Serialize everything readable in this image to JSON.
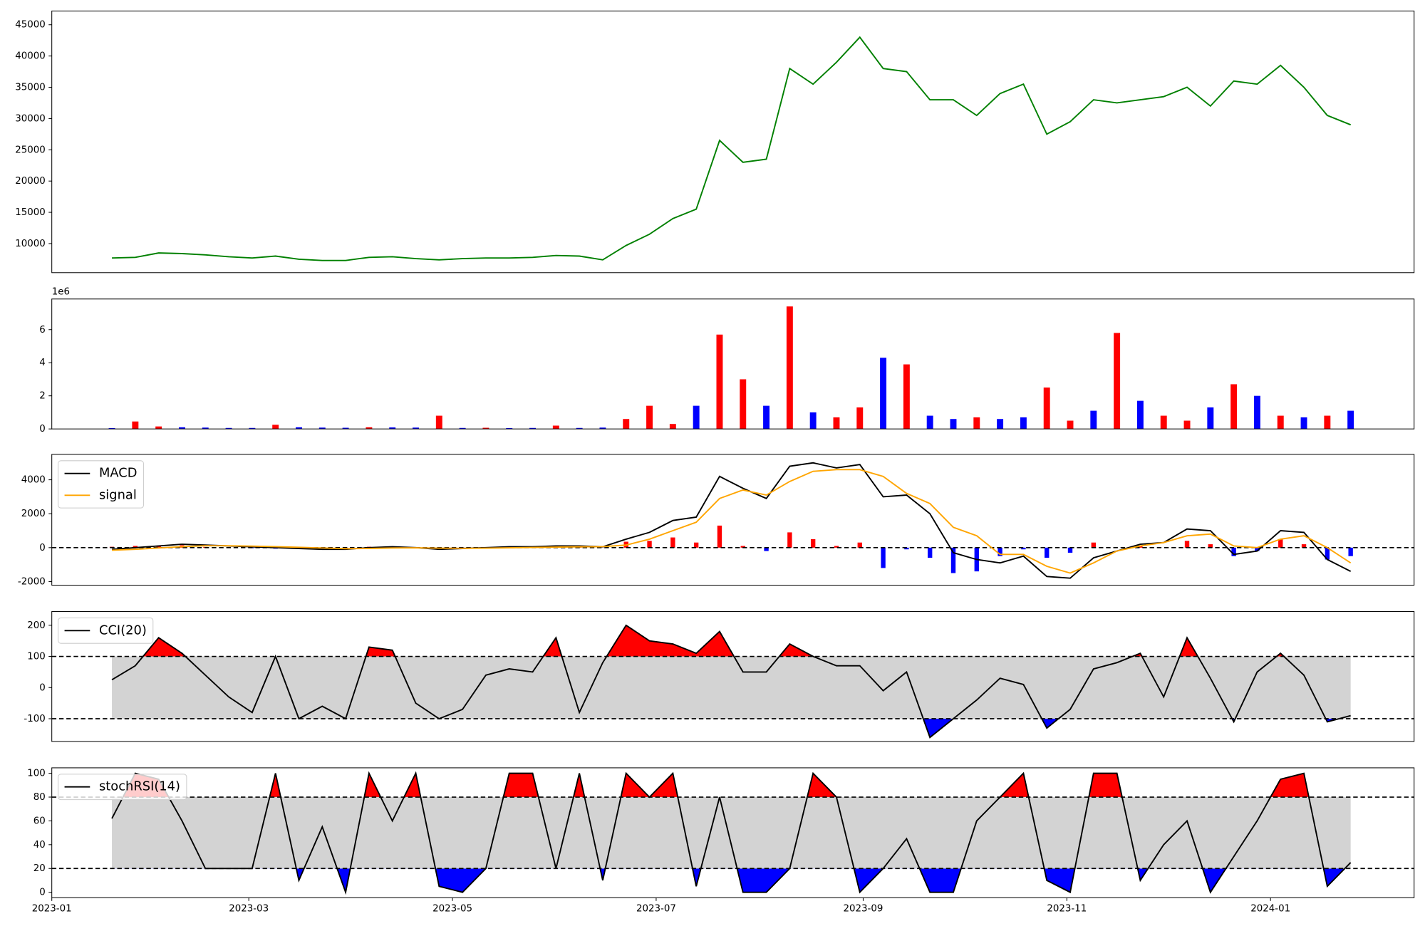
{
  "chart_data": [
    {
      "type": "line",
      "x": [
        19376,
        19383,
        19390,
        19397,
        19404,
        19411,
        19418,
        19425,
        19432,
        19439,
        19446,
        19453,
        19460,
        19467,
        19474,
        19481,
        19488,
        19495,
        19502,
        19509,
        19516,
        19523,
        19530,
        19537,
        19544,
        19551,
        19558,
        19565,
        19572,
        19579,
        19586,
        19593,
        19600,
        19607,
        19614,
        19621,
        19628,
        19635,
        19642,
        19649,
        19656,
        19663,
        19670,
        19677,
        19684,
        19691,
        19698,
        19705,
        19712,
        19719,
        19726,
        19733,
        19740,
        19747
      ],
      "series": [
        {
          "color": "#008000",
          "values": [
            7700,
            7800,
            8500,
            8400,
            8200,
            7900,
            7700,
            8000,
            7500,
            7300,
            7300,
            7800,
            7900,
            7600,
            7400,
            7600,
            7700,
            7700,
            7800,
            8100,
            8000,
            7400,
            9700,
            11500,
            14000,
            15500,
            26500,
            23000,
            23500,
            38000,
            35500,
            39000,
            43000,
            38000,
            37500,
            33000,
            33000,
            30500,
            34000,
            35500,
            27500,
            29500,
            33000,
            32500,
            33000,
            33500,
            35000,
            32000,
            36000,
            35500,
            38500,
            35000,
            30500,
            29000
          ]
        }
      ],
      "xlim": [
        19358,
        19766
      ],
      "ylim": [
        5350,
        47200
      ],
      "yticks": [
        10000,
        15000,
        20000,
        25000,
        30000,
        35000,
        40000,
        45000
      ]
    },
    {
      "type": "bar",
      "x": [
        19376,
        19383,
        19390,
        19397,
        19404,
        19411,
        19418,
        19425,
        19432,
        19439,
        19446,
        19453,
        19460,
        19467,
        19474,
        19481,
        19488,
        19495,
        19502,
        19509,
        19516,
        19523,
        19530,
        19537,
        19544,
        19551,
        19558,
        19565,
        19572,
        19579,
        19586,
        19593,
        19600,
        19607,
        19614,
        19621,
        19628,
        19635,
        19642,
        19649,
        19656,
        19663,
        19670,
        19677,
        19684,
        19691,
        19698,
        19705,
        19712,
        19719,
        19726,
        19733,
        19740,
        19747
      ],
      "values": [
        50000,
        450000,
        150000,
        100000,
        80000,
        60000,
        60000,
        250000,
        100000,
        80000,
        70000,
        100000,
        90000,
        80000,
        800000,
        60000,
        70000,
        50000,
        60000,
        200000,
        60000,
        80000,
        600000,
        1400000,
        300000,
        1400000,
        5700000,
        3000000,
        1400000,
        7400000,
        1000000,
        700000,
        1300000,
        4300000,
        3900000,
        800000,
        600000,
        700000,
        600000,
        700000,
        2500000,
        500000,
        1100000,
        5800000,
        1700000,
        800000,
        500000,
        1300000,
        2700000,
        2000000,
        800000,
        700000,
        800000,
        1100000
      ],
      "colors": [
        "blue",
        "red",
        "red",
        "blue",
        "blue",
        "blue",
        "blue",
        "red",
        "blue",
        "blue",
        "blue",
        "red",
        "blue",
        "blue",
        "red",
        "blue",
        "red",
        "blue",
        "blue",
        "red",
        "blue",
        "blue",
        "red",
        "red",
        "red",
        "blue",
        "red",
        "red",
        "blue",
        "red",
        "blue",
        "red",
        "red",
        "blue",
        "red",
        "blue",
        "blue",
        "red",
        "blue",
        "blue",
        "red",
        "red",
        "blue",
        "red",
        "blue",
        "red",
        "red",
        "blue",
        "red",
        "blue",
        "red",
        "blue",
        "red",
        "blue"
      ],
      "xlim": [
        19358,
        19766
      ],
      "ylim": [
        0,
        7850000
      ],
      "yticks": [
        {
          "value": 0,
          "label": "0"
        },
        {
          "value": 2000000,
          "label": "2"
        },
        {
          "value": 4000000,
          "label": "4"
        },
        {
          "value": 6000000,
          "label": "6"
        }
      ],
      "y_offset_label": "1e6"
    },
    {
      "type": "combo",
      "x": [
        19376,
        19383,
        19390,
        19397,
        19404,
        19411,
        19418,
        19425,
        19432,
        19439,
        19446,
        19453,
        19460,
        19467,
        19474,
        19481,
        19488,
        19495,
        19502,
        19509,
        19516,
        19523,
        19530,
        19537,
        19544,
        19551,
        19558,
        19565,
        19572,
        19579,
        19586,
        19593,
        19600,
        19607,
        19614,
        19621,
        19628,
        19635,
        19642,
        19649,
        19656,
        19663,
        19670,
        19677,
        19684,
        19691,
        19698,
        19705,
        19712,
        19719,
        19726,
        19733,
        19740,
        19747
      ],
      "series": [
        {
          "name": "MACD",
          "color": "black",
          "values": [
            -100,
            0,
            100,
            200,
            150,
            100,
            50,
            0,
            -50,
            -100,
            -100,
            0,
            50,
            0,
            -100,
            -50,
            0,
            50,
            50,
            100,
            100,
            50,
            500,
            900,
            1600,
            1800,
            4200,
            3500,
            2900,
            4800,
            5000,
            4700,
            4900,
            3000,
            3100,
            2000,
            -300,
            -700,
            -900,
            -500,
            -1700,
            -1800,
            -600,
            -200,
            200,
            300,
            1100,
            1000,
            -400,
            -200,
            1000,
            900,
            -700,
            -1400
          ]
        },
        {
          "name": "signal",
          "color": "orange",
          "values": [
            -150,
            -100,
            -20,
            60,
            110,
            110,
            90,
            60,
            20,
            -20,
            -60,
            -50,
            -20,
            -10,
            -30,
            -40,
            -30,
            -10,
            10,
            30,
            50,
            60,
            150,
            500,
            1000,
            1500,
            2900,
            3400,
            3100,
            3900,
            4500,
            4600,
            4600,
            4200,
            3200,
            2600,
            1200,
            700,
            -400,
            -400,
            -1100,
            -1500,
            -900,
            -200,
            100,
            300,
            700,
            800,
            100,
            0,
            500,
            700,
            0,
            -900
          ]
        }
      ],
      "histogram": {
        "values": [
          50,
          100,
          120,
          140,
          40,
          -10,
          -30,
          -60,
          -70,
          -80,
          -40,
          50,
          70,
          10,
          -70,
          -10,
          30,
          60,
          40,
          70,
          50,
          -10,
          350,
          400,
          600,
          300,
          1300,
          100,
          -200,
          900,
          500,
          100,
          300,
          -1200,
          -100,
          -600,
          -1500,
          -1400,
          -500,
          -100,
          -600,
          -300,
          300,
          0,
          100,
          0,
          400,
          200,
          -500,
          -200,
          500,
          200,
          -700,
          -500
        ],
        "pos_color": "red",
        "neg_color": "blue"
      },
      "hline": 0,
      "xlim": [
        19358,
        19766
      ],
      "ylim": [
        -2215,
        5500
      ],
      "yticks": [
        -2000,
        0,
        2000,
        4000
      ],
      "legend": "upper left"
    },
    {
      "type": "oscillator",
      "x": [
        19376,
        19383,
        19390,
        19397,
        19404,
        19411,
        19418,
        19425,
        19432,
        19439,
        19446,
        19453,
        19460,
        19467,
        19474,
        19481,
        19488,
        19495,
        19502,
        19509,
        19516,
        19523,
        19530,
        19537,
        19544,
        19551,
        19558,
        19565,
        19572,
        19579,
        19586,
        19593,
        19600,
        19607,
        19614,
        19621,
        19628,
        19635,
        19642,
        19649,
        19656,
        19663,
        19670,
        19677,
        19684,
        19691,
        19698,
        19705,
        19712,
        19719,
        19726,
        19733,
        19740,
        19747
      ],
      "series": [
        {
          "name": "CCI(20)",
          "color": "black",
          "values": [
            25,
            70,
            160,
            110,
            40,
            -30,
            -80,
            100,
            -100,
            -60,
            -100,
            130,
            120,
            -50,
            -100,
            -70,
            40,
            60,
            50,
            160,
            -80,
            80,
            200,
            150,
            140,
            110,
            180,
            50,
            50,
            140,
            100,
            70,
            70,
            -10,
            50,
            -160,
            -100,
            -40,
            30,
            10,
            -130,
            -70,
            60,
            80,
            110,
            -30,
            160,
            30,
            -110,
            50,
            110,
            40,
            -110,
            -90
          ]
        }
      ],
      "upper": 100,
      "lower": -100,
      "band_color": "lightgray",
      "above_color": "red",
      "below_color": "blue",
      "xlim": [
        19358,
        19766
      ],
      "ylim": [
        -173,
        244
      ],
      "yticks": [
        -100,
        0,
        100,
        200
      ],
      "legend": "upper left"
    },
    {
      "type": "oscillator",
      "x": [
        19376,
        19383,
        19390,
        19397,
        19404,
        19411,
        19418,
        19425,
        19432,
        19439,
        19446,
        19453,
        19460,
        19467,
        19474,
        19481,
        19488,
        19495,
        19502,
        19509,
        19516,
        19523,
        19530,
        19537,
        19544,
        19551,
        19558,
        19565,
        19572,
        19579,
        19586,
        19593,
        19600,
        19607,
        19614,
        19621,
        19628,
        19635,
        19642,
        19649,
        19656,
        19663,
        19670,
        19677,
        19684,
        19691,
        19698,
        19705,
        19712,
        19719,
        19726,
        19733,
        19740,
        19747
      ],
      "series": [
        {
          "name": "stochRSI(14)",
          "color": "black",
          "values": [
            62,
            100,
            95,
            60,
            20,
            20,
            20,
            100,
            10,
            55,
            0,
            100,
            60,
            100,
            5,
            0,
            20,
            100,
            100,
            20,
            100,
            10,
            100,
            80,
            100,
            5,
            80,
            0,
            0,
            20,
            100,
            80,
            0,
            20,
            45,
            0,
            0,
            60,
            80,
            100,
            10,
            0,
            100,
            100,
            10,
            40,
            60,
            0,
            30,
            60,
            95,
            100,
            5,
            25
          ]
        }
      ],
      "upper": 80,
      "lower": 20,
      "band_color": "lightgray",
      "above_color": "red",
      "below_color": "blue",
      "xlim": [
        19358,
        19766
      ],
      "ylim": [
        -4.6,
        104.6
      ],
      "yticks": [
        0,
        20,
        40,
        60,
        80,
        100
      ],
      "legend": "upper left",
      "xticks": [
        {
          "value": 19358,
          "label": "2023-01"
        },
        {
          "value": 19417,
          "label": "2023-03"
        },
        {
          "value": 19478,
          "label": "2023-05"
        },
        {
          "value": 19539,
          "label": "2023-07"
        },
        {
          "value": 19601,
          "label": "2023-09"
        },
        {
          "value": 19662,
          "label": "2023-11"
        },
        {
          "value": 19723,
          "label": "2024-01"
        }
      ]
    }
  ]
}
